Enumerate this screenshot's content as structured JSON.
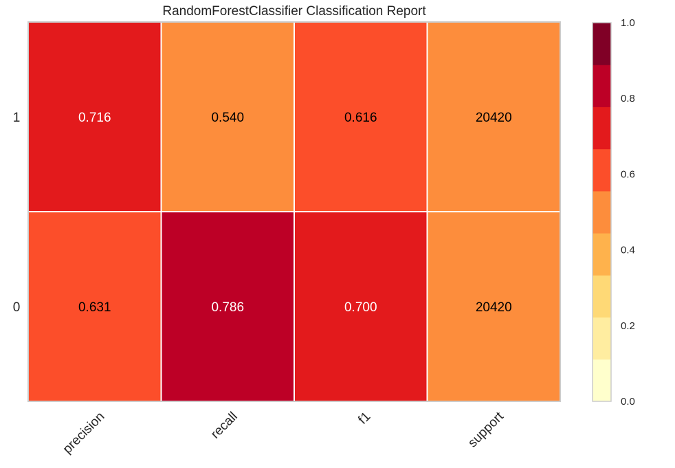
{
  "chart_data": {
    "type": "heatmap",
    "title": "RandomForestClassifier Classification Report",
    "columns": [
      "precision",
      "recall",
      "f1",
      "support"
    ],
    "rows": [
      "1",
      "0"
    ],
    "values": [
      [
        0.716,
        0.54,
        0.616,
        20420
      ],
      [
        0.631,
        0.786,
        0.7,
        20420
      ]
    ],
    "cell_labels": [
      [
        "0.716",
        "0.540",
        "0.616",
        "20420"
      ],
      [
        "0.631",
        "0.786",
        "0.700",
        "20420"
      ]
    ],
    "color_values": [
      [
        0.716,
        0.54,
        0.616,
        0.5
      ],
      [
        0.631,
        0.786,
        0.7,
        0.5
      ]
    ],
    "colorbar": {
      "range": [
        0.0,
        1.0
      ],
      "ticks": [
        "0.0",
        "0.2",
        "0.4",
        "0.6",
        "0.8",
        "1.0"
      ],
      "bins": [
        "#ffffcc",
        "#ffeda0",
        "#fed976",
        "#feb24c",
        "#fd8d3c",
        "#fc4e2a",
        "#e31a1c",
        "#bd0026",
        "#800026"
      ]
    },
    "legend_placement": "right"
  }
}
